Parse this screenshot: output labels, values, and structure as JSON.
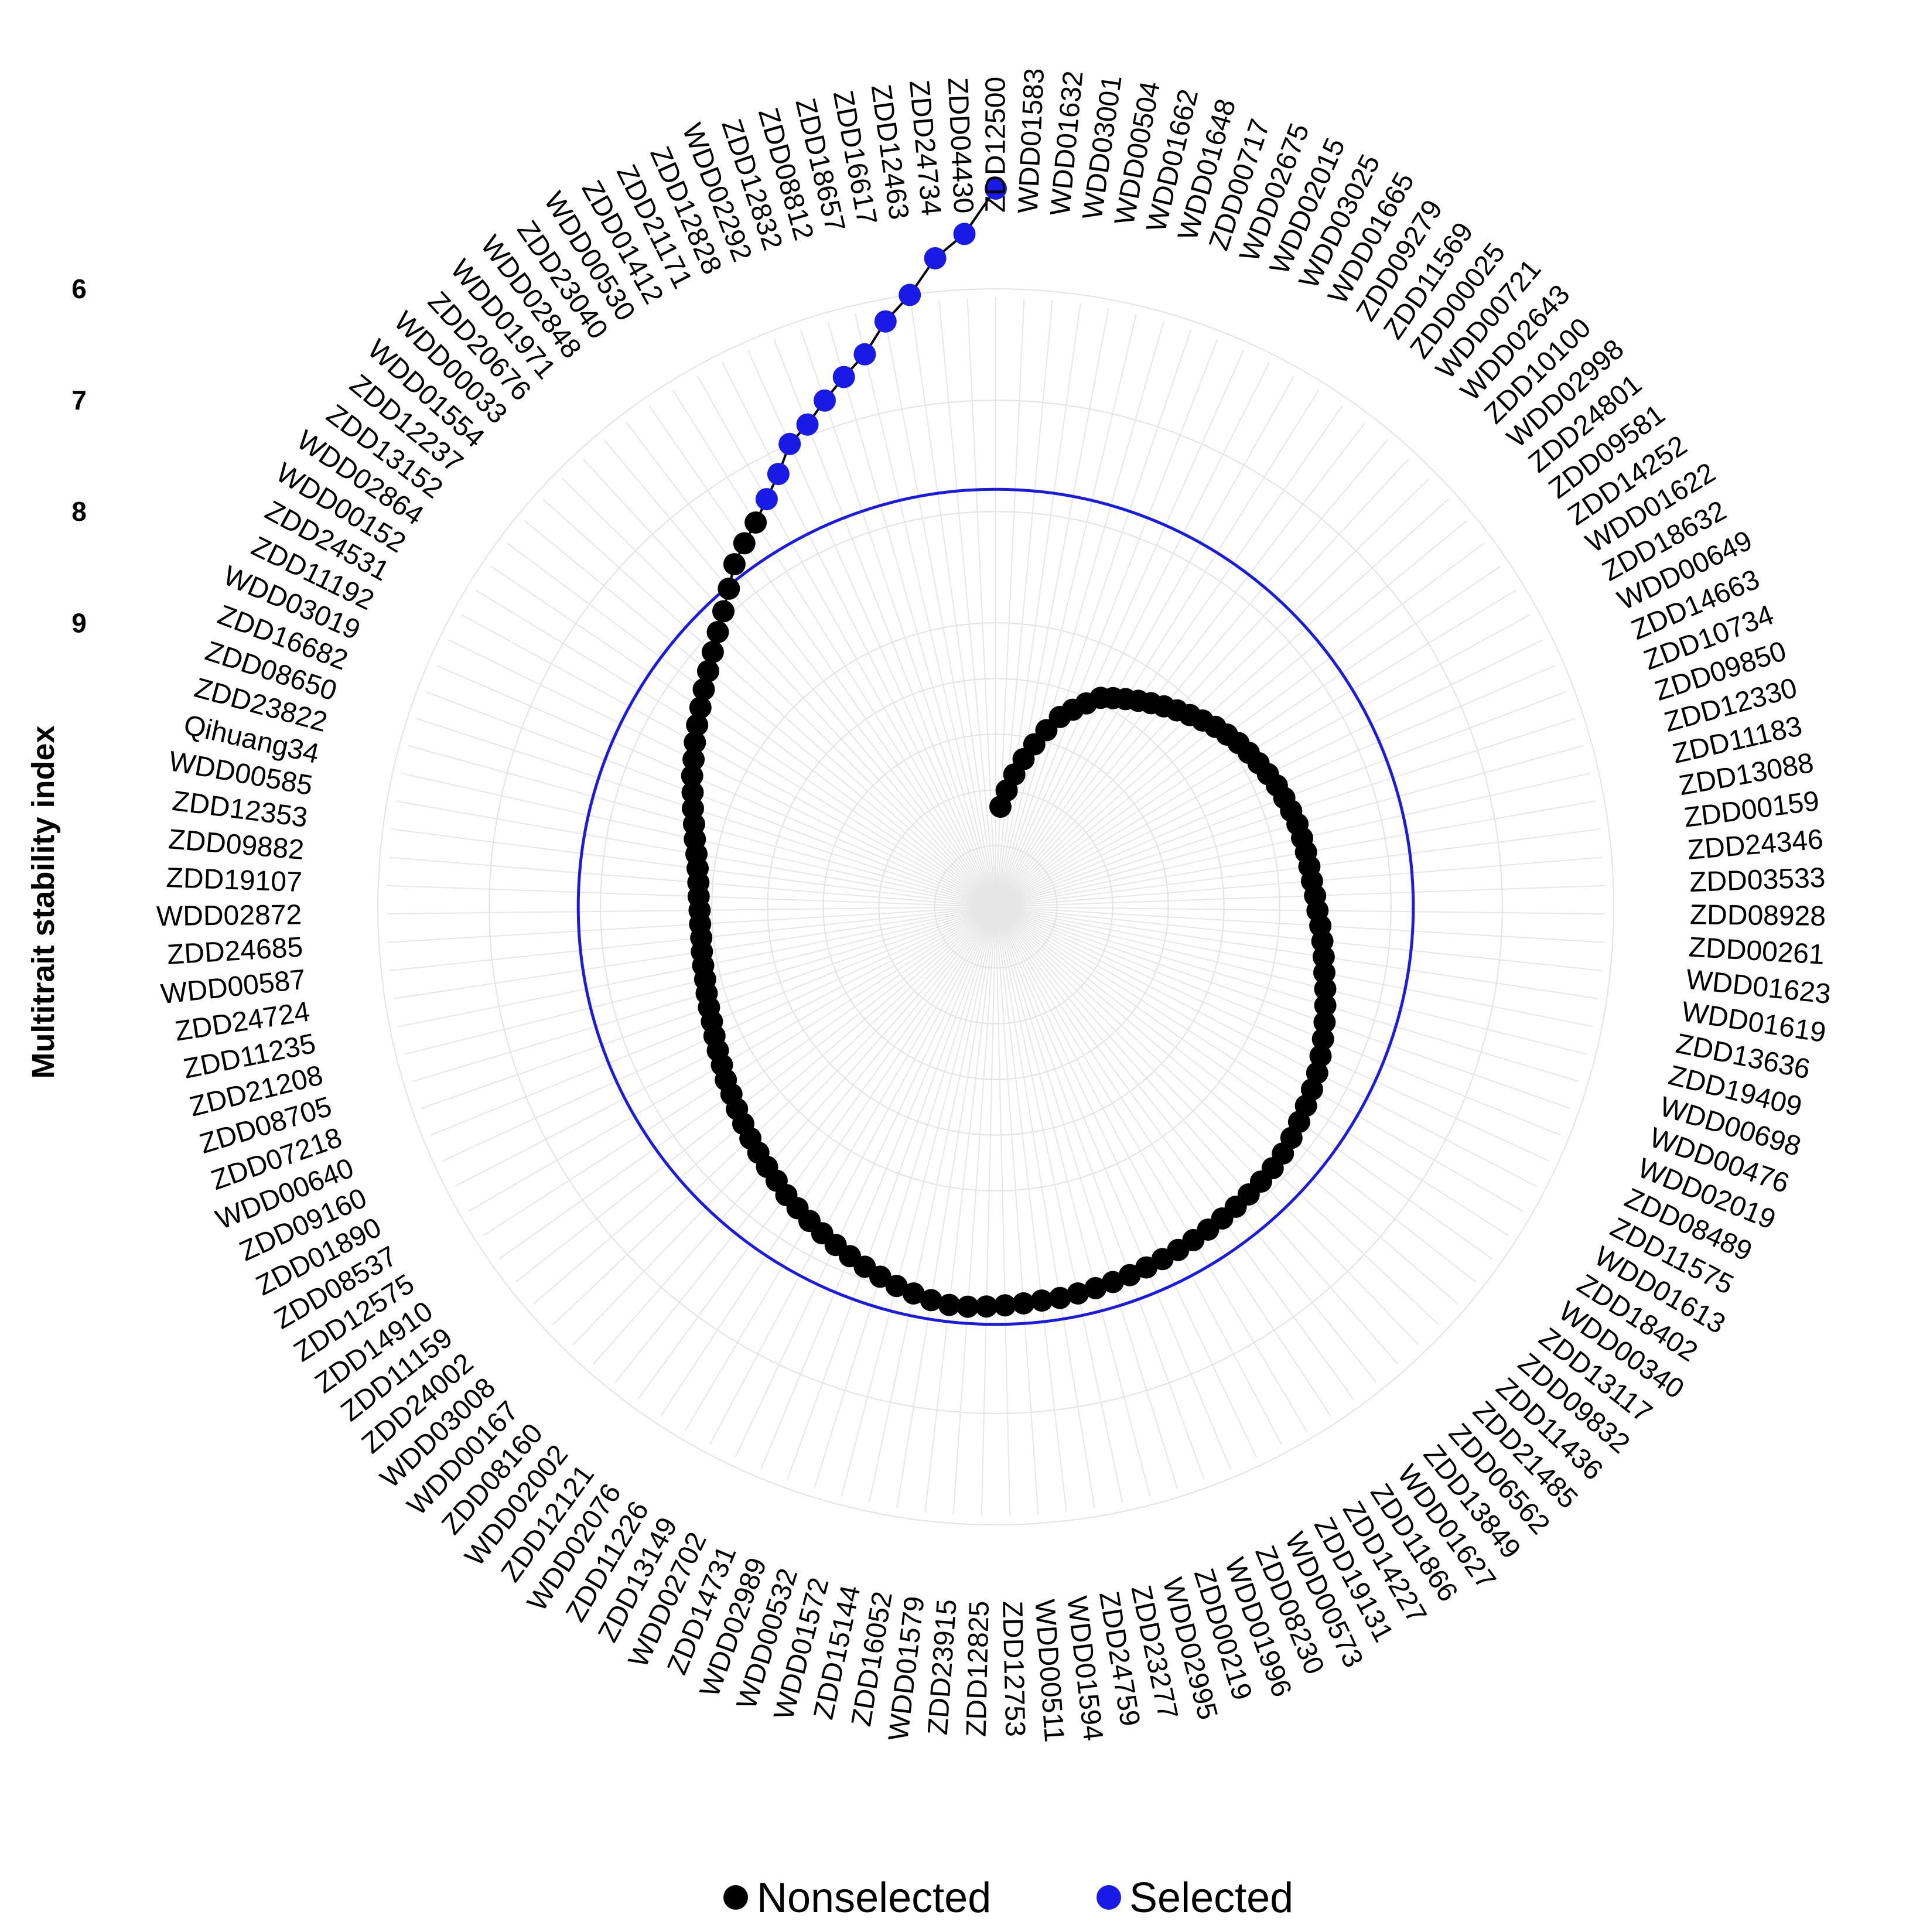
{
  "chart_data": {
    "type": "scatter",
    "coordinate_system": "polar",
    "ylabel": "Multitrait stability index",
    "y_ticks": [
      6,
      7,
      8,
      9
    ],
    "y_axis": "reversed",
    "ylim": [
      4.5,
      11.55
    ],
    "selection_threshold": 7.8,
    "grid": true,
    "legend_position": "bottom",
    "legend": [
      {
        "name": "Nonselected",
        "color": "#000000"
      },
      {
        "name": "Selected",
        "color": "#1a1ae6"
      }
    ],
    "series": [
      {
        "name": "Selected",
        "color": "#1a1ae6",
        "categories": [
          "ZDD12500",
          "ZDD04430",
          "ZDD24734",
          "ZDD12463",
          "ZDD16617",
          "ZDD18657",
          "ZDD08812",
          "ZDD12832",
          "WDD02292",
          "ZDD12828",
          "ZDD21171",
          "ZDD01412"
        ],
        "values": [
          5.1,
          5.5,
          5.7,
          6.0,
          6.2,
          6.45,
          6.6,
          6.75,
          6.9,
          7.0,
          7.2,
          7.35
        ]
      },
      {
        "name": "Nonselected",
        "color": "#000000",
        "categories": [
          "WDD00530",
          "ZDD23040",
          "WDD02848",
          "WDD01971",
          "ZDD20676",
          "WDD00033",
          "WDD01554",
          "ZDD12237",
          "ZDD13152",
          "WDD02864",
          "WDD00152",
          "ZDD24531",
          "ZDD11192",
          "WDD03019",
          "ZDD16682",
          "ZDD08650",
          "ZDD23822",
          "Qihuang34",
          "WDD00585",
          "ZDD12353",
          "ZDD09882",
          "ZDD19107",
          "WDD02872",
          "ZDD24685",
          "WDD00587",
          "ZDD24724",
          "ZDD11235",
          "ZDD21208",
          "ZDD08705",
          "ZDD07218",
          "WDD00640",
          "ZDD09160",
          "ZDD01890",
          "ZDD08537",
          "ZDD12575",
          "ZDD14910",
          "ZDD11159",
          "ZDD24002",
          "WDD03008",
          "WDD00167",
          "ZDD08160",
          "WDD02002",
          "ZDD12121",
          "WDD02076",
          "ZDD11226",
          "ZDD13149",
          "WDD02702",
          "ZDD14731",
          "WDD02989",
          "WDD00532",
          "WDD01572",
          "ZDD15144",
          "ZDD16052",
          "WDD01579",
          "ZDD23915",
          "ZDD12825",
          "ZDD12753",
          "WDD00511",
          "WDD01594",
          "ZDD24759",
          "ZDD23277",
          "WDD02995",
          "ZDD00219",
          "WDD01996",
          "ZDD08230",
          "WDD00573",
          "ZDD19131",
          "ZDD14227",
          "ZDD11866",
          "WDD01627",
          "ZDD13849",
          "ZDD06562",
          "ZDD21485",
          "ZDD11436",
          "ZDD09832",
          "ZDD13117",
          "WDD00340",
          "ZDD18402",
          "WDD01613",
          "ZDD11575",
          "ZDD08489",
          "WDD02019",
          "WDD00476",
          "WDD00698",
          "ZDD19409",
          "ZDD13636",
          "WDD01619",
          "WDD01623",
          "ZDD00261",
          "ZDD08928",
          "ZDD03533",
          "ZDD24346",
          "ZDD00159",
          "ZDD13088",
          "ZDD11183",
          "ZDD12330",
          "ZDD09850",
          "ZDD10734",
          "ZDD14663",
          "WDD00649",
          "ZDD18632",
          "WDD01622",
          "ZDD14252",
          "ZDD09581",
          "ZDD24801",
          "WDD02998",
          "ZDD10100",
          "WDD02643",
          "WDD00721",
          "ZDD00025",
          "ZDD11569",
          "ZDD09279",
          "WDD01665",
          "WDD03025",
          "WDD02015",
          "WDD02675",
          "ZDD00717",
          "WDD01648",
          "WDD01662",
          "WDD00504",
          "WDD03001",
          "WDD01632",
          "WDD01583"
        ],
        "values": [
          7.48,
          7.58,
          7.68,
          7.82,
          7.94,
          8.04,
          8.13,
          8.21,
          8.28,
          8.35,
          8.41,
          8.47,
          8.53,
          8.58,
          8.64,
          8.69,
          8.74,
          8.78,
          8.82,
          8.85,
          8.87,
          8.88,
          8.89,
          8.89,
          8.89,
          8.88,
          8.87,
          8.86,
          8.84,
          8.82,
          8.8,
          8.77,
          8.74,
          8.71,
          8.67,
          8.64,
          8.6,
          8.56,
          8.52,
          8.48,
          8.44,
          8.4,
          8.35,
          8.31,
          8.27,
          8.23,
          8.19,
          8.15,
          8.11,
          8.07,
          8.03,
          8.0,
          7.97,
          7.95,
          7.95,
          7.96,
          7.97,
          7.98,
          7.99,
          7.99,
          8.0,
          8.01,
          8.02,
          8.03,
          8.04,
          8.05,
          8.06,
          8.07,
          8.08,
          8.09,
          8.1,
          8.11,
          8.12,
          8.13,
          8.15,
          8.18,
          8.21,
          8.24,
          8.27,
          8.3,
          8.34,
          8.38,
          8.42,
          8.46,
          8.5,
          8.54,
          8.57,
          8.6,
          8.63,
          8.66,
          8.68,
          8.7,
          8.71,
          8.72,
          8.73,
          8.74,
          8.76,
          8.78,
          8.8,
          8.83,
          8.86,
          8.89,
          8.92,
          8.96,
          9.0,
          9.05,
          9.1,
          9.15,
          9.2,
          9.25,
          9.3,
          9.35,
          9.4,
          9.45,
          9.55,
          9.65,
          9.75,
          9.9,
          10.05,
          10.2,
          10.35,
          10.5,
          10.65
        ]
      }
    ]
  }
}
